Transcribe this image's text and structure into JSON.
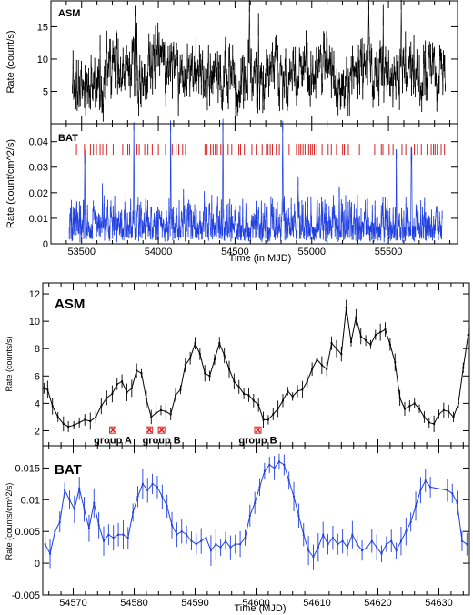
{
  "colors": {
    "asm": "#000000",
    "bat": "#1f3fe0",
    "marker": "#d42020",
    "frame": "#000000"
  },
  "chart_data": [
    {
      "type": "line",
      "panel": "ASM",
      "label": "ASM",
      "ylabel": "Rate (count/s)",
      "xlim": [
        53300,
        55950
      ],
      "ylim": [
        0,
        19
      ],
      "yticks": [
        5,
        10,
        15
      ],
      "x_start": 53440,
      "x_end": 55870,
      "seed": 11,
      "base_level": 7.5,
      "spread": 7,
      "low_clip": 0.5,
      "series": [
        {
          "x_start": 53440,
          "x_end": 55870
        }
      ]
    },
    {
      "type": "line",
      "panel": "BAT",
      "label": "BAT",
      "ylabel": "Rate (count/cm^2/s)",
      "xlabel": "Time (in MJD)",
      "xlim": [
        53300,
        55950
      ],
      "ylim": [
        0,
        0.047
      ],
      "yticks": [
        0,
        0.01,
        0.02,
        0.03,
        0.04
      ],
      "xticks": [
        53500,
        54000,
        54500,
        55000,
        55500
      ],
      "x_start": 53420,
      "x_end": 55850,
      "seed": 29,
      "flares": [
        {
          "x": 53520,
          "y": 0.034
        },
        {
          "x": 53840,
          "y": 0.046
        },
        {
          "x": 54080,
          "y": 0.046
        },
        {
          "x": 54420,
          "y": 0.046
        },
        {
          "x": 54810,
          "y": 0.046
        },
        {
          "x": 55180,
          "y": 0.02
        },
        {
          "x": 55550,
          "y": 0.035
        },
        {
          "x": 55650,
          "y": 0.035
        }
      ],
      "marker_band_y": 0.037,
      "marker_seed": 7
    },
    {
      "type": "line",
      "panel": "ASM",
      "label": "ASM",
      "ylabel": "Rate (counts/s)",
      "xlim": [
        54565,
        54635
      ],
      "ylim": [
        0.9,
        12.8
      ],
      "yticks": [
        2,
        4,
        6,
        8,
        10,
        12
      ],
      "x": [
        54565.2,
        54565.8,
        54566.6,
        54567.5,
        54568.4,
        54569.2,
        54570.1,
        54571.0,
        54571.9,
        54572.8,
        54573.7,
        54574.6,
        54575.5,
        54576.4,
        54577.2,
        54578.0,
        54578.8,
        54579.6,
        54580.4,
        54581.2,
        54582.0,
        54582.8,
        54583.6,
        54584.4,
        54585.2,
        54586.0,
        54586.8,
        54587.6,
        54588.4,
        54589.2,
        54590.0,
        54590.8,
        54591.6,
        54592.4,
        54593.2,
        54594.0,
        54594.8,
        54595.6,
        54596.4,
        54597.2,
        54598.0,
        54598.8,
        54599.6,
        54600.4,
        54601.2,
        54602.0,
        54602.8,
        54603.6,
        54604.4,
        54605.2,
        54606.0,
        54606.8,
        54607.6,
        54608.4,
        54609.2,
        54610.0,
        54610.8,
        54611.6,
        54612.4,
        54613.2,
        54614.0,
        54614.8,
        54615.6,
        54616.4,
        54617.2,
        54618.0,
        54618.8,
        54619.6,
        54620.4,
        54621.2,
        54622.0,
        54622.8,
        54623.6,
        54624.4,
        54625.2,
        54626.0,
        54626.8,
        54627.6,
        54628.4,
        54629.2,
        54630.0,
        54630.8,
        54631.6,
        54632.4,
        54633.2,
        54634.0,
        54634.8
      ],
      "y": [
        5.1,
        5.0,
        3.8,
        3.0,
        2.5,
        2.3,
        2.4,
        2.6,
        2.8,
        2.7,
        3.0,
        3.8,
        4.4,
        4.7,
        5.4,
        5.6,
        4.8,
        5.1,
        6.4,
        6.2,
        4.3,
        3.0,
        3.3,
        3.5,
        3.4,
        3.2,
        4.6,
        5.0,
        6.8,
        7.3,
        8.4,
        7.6,
        6.2,
        6.0,
        7.2,
        8.4,
        7.5,
        6.5,
        5.6,
        5.2,
        4.7,
        4.6,
        4.2,
        3.9,
        2.8,
        2.8,
        3.2,
        3.6,
        4.2,
        4.9,
        4.5,
        4.9,
        5.0,
        5.6,
        6.5,
        7.2,
        6.8,
        6.5,
        8.4,
        8.0,
        7.6,
        11.0,
        8.5,
        10.3,
        8.9,
        8.6,
        8.3,
        9.0,
        9.2,
        9.4,
        8.3,
        7.0,
        4.4,
        3.6,
        3.8,
        4.0,
        3.6,
        3.0,
        2.6,
        2.5,
        3.2,
        3.5,
        3.4,
        3.0,
        4.0,
        6.6,
        9.0
      ],
      "groups": [
        {
          "x": 54576.5,
          "y": 2.05,
          "label": "group A"
        },
        {
          "x": 54582.5,
          "y": 2.05,
          "label": ""
        },
        {
          "x": 54584.5,
          "y": 2.05,
          "label": "group B"
        },
        {
          "x": 54600.3,
          "y": 2.05,
          "label": "group B"
        }
      ]
    },
    {
      "type": "line",
      "panel": "BAT",
      "label": "BAT",
      "ylabel": "Rate (counts/cm^2/s)",
      "xlabel": "Time (MJD)",
      "xlim": [
        54565,
        54635
      ],
      "ylim": [
        -0.005,
        0.0185
      ],
      "yticks": [
        -0.005,
        0,
        0.005,
        0.01,
        0.015
      ],
      "ytick_labels": [
        "-0.005",
        "0",
        "0.005",
        "0.01",
        "0.015"
      ],
      "xticks": [
        54570,
        54580,
        54590,
        54600,
        54610,
        54620,
        54630
      ],
      "x": [
        54565.4,
        54566.2,
        54567.0,
        54567.8,
        54568.6,
        54569.4,
        54570.2,
        54571.0,
        54571.8,
        54572.6,
        54573.4,
        54574.2,
        54575.0,
        54575.8,
        54576.6,
        54577.4,
        54578.2,
        54579.0,
        54579.8,
        54580.6,
        54581.4,
        54582.2,
        54583.0,
        54583.8,
        54584.6,
        54585.4,
        54586.2,
        54587.0,
        54587.8,
        54588.6,
        54589.4,
        54590.2,
        54591.0,
        54591.8,
        54592.6,
        54593.4,
        54594.2,
        54595.0,
        54595.8,
        54596.6,
        54597.4,
        54598.2,
        54599.0,
        54599.8,
        54600.6,
        54601.4,
        54602.2,
        54603.0,
        54603.8,
        54604.6,
        54605.4,
        54606.2,
        54607.0,
        54607.8,
        54608.6,
        54609.4,
        54610.2,
        54611.0,
        54611.8,
        54612.6,
        54613.4,
        54614.2,
        54615.0,
        54615.8,
        54616.6,
        54617.4,
        54618.2,
        54619.0,
        54619.8,
        54620.6,
        54621.4,
        54622.2,
        54623.0,
        54623.8,
        54624.6,
        54625.4,
        54626.2,
        54627.0,
        54627.8,
        54628.6,
        54631.4,
        54632.2,
        54633.0,
        54633.8,
        54634.6
      ],
      "y": [
        0.003,
        0.0015,
        0.005,
        0.0065,
        0.0115,
        0.01,
        0.0085,
        0.0118,
        0.0085,
        0.0055,
        0.0095,
        0.006,
        0.0035,
        0.0045,
        0.004,
        0.0045,
        0.0045,
        0.004,
        0.008,
        0.0105,
        0.0125,
        0.0115,
        0.0125,
        0.012,
        0.0105,
        0.009,
        0.006,
        0.0045,
        0.005,
        0.0045,
        0.0035,
        0.003,
        0.0035,
        0.004,
        0.002,
        0.003,
        0.0025,
        0.0035,
        0.0025,
        0.003,
        0.003,
        0.004,
        0.0075,
        0.0095,
        0.012,
        0.0145,
        0.0155,
        0.015,
        0.016,
        0.0155,
        0.013,
        0.0105,
        0.0075,
        0.0045,
        0.002,
        0.001,
        0.0025,
        0.0045,
        0.003,
        0.004,
        0.003,
        0.0035,
        0.0025,
        0.0045,
        0.003,
        0.002,
        0.0025,
        0.0035,
        0.0025,
        0.0015,
        0.003,
        0.0035,
        0.002,
        0.0035,
        0.005,
        0.0065,
        0.009,
        0.0115,
        0.013,
        0.012,
        0.0115,
        0.011,
        0.0095,
        0.0035,
        0.003
      ]
    }
  ]
}
